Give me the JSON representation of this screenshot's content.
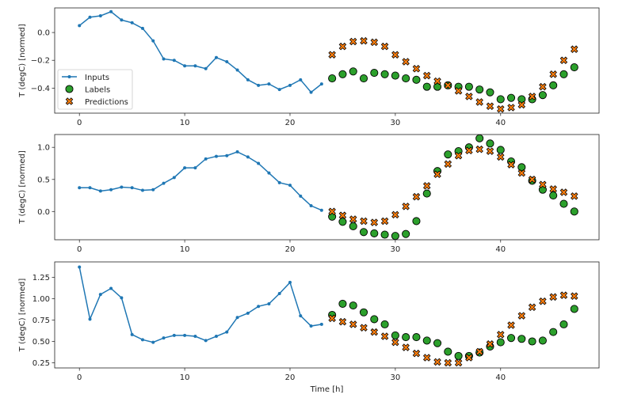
{
  "chart_data": [
    {
      "type": "line",
      "ylabel": "T (degC) [normed]",
      "xlabel": "",
      "xlim": [
        -2.35,
        49.35
      ],
      "ylim": [
        -0.58,
        0.177
      ],
      "xticks": [
        0,
        10,
        20,
        30,
        40
      ],
      "yticks": [
        0.0,
        -0.2,
        -0.4
      ],
      "ytick_labels": [
        "0.0",
        "−0.2",
        "−0.4"
      ],
      "legend": {
        "placement": "lower-left",
        "entries": [
          "Inputs",
          "Labels",
          "Predictions"
        ]
      },
      "grid": false,
      "inputs": {
        "name": "Inputs",
        "x_start": 0,
        "values": [
          0.05,
          0.11,
          0.12,
          0.15,
          0.09,
          0.07,
          0.03,
          -0.06,
          -0.19,
          -0.2,
          -0.24,
          -0.24,
          -0.26,
          -0.18,
          -0.21,
          -0.27,
          -0.34,
          -0.38,
          -0.37,
          -0.41,
          -0.38,
          -0.34,
          -0.43,
          -0.37
        ]
      },
      "labels": {
        "name": "Labels",
        "x_start": 24,
        "values": [
          -0.33,
          -0.3,
          -0.28,
          -0.33,
          -0.29,
          -0.3,
          -0.31,
          -0.33,
          -0.34,
          -0.39,
          -0.39,
          -0.38,
          -0.39,
          -0.39,
          -0.41,
          -0.43,
          -0.48,
          -0.47,
          -0.48,
          -0.48,
          -0.45,
          -0.38,
          -0.3,
          -0.25
        ]
      },
      "predictions": {
        "name": "Predictions",
        "x_start": 24,
        "values": [
          -0.16,
          -0.1,
          -0.065,
          -0.06,
          -0.07,
          -0.1,
          -0.16,
          -0.21,
          -0.26,
          -0.31,
          -0.35,
          -0.38,
          -0.42,
          -0.46,
          -0.5,
          -0.53,
          -0.55,
          -0.54,
          -0.52,
          -0.46,
          -0.39,
          -0.3,
          -0.2,
          -0.12
        ]
      }
    },
    {
      "type": "line",
      "ylabel": "T (degC) [normed]",
      "xlabel": "",
      "xlim": [
        -2.35,
        49.35
      ],
      "ylim": [
        -0.44,
        1.2
      ],
      "xticks": [
        0,
        10,
        20,
        30,
        40
      ],
      "yticks": [
        0.0,
        0.5,
        1.0
      ],
      "ytick_labels": [
        "0.0",
        "0.5",
        "1.0"
      ],
      "grid": false,
      "inputs": {
        "name": "Inputs",
        "x_start": 0,
        "values": [
          0.37,
          0.37,
          0.32,
          0.34,
          0.38,
          0.37,
          0.33,
          0.34,
          0.44,
          0.53,
          0.68,
          0.68,
          0.82,
          0.86,
          0.87,
          0.93,
          0.85,
          0.75,
          0.6,
          0.45,
          0.41,
          0.24,
          0.09,
          0.02
        ]
      },
      "labels": {
        "name": "Labels",
        "x_start": 24,
        "values": [
          -0.08,
          -0.16,
          -0.23,
          -0.32,
          -0.34,
          -0.36,
          -0.38,
          -0.35,
          -0.15,
          0.28,
          0.63,
          0.89,
          0.94,
          1.0,
          1.14,
          1.06,
          0.96,
          0.78,
          0.69,
          0.48,
          0.34,
          0.25,
          0.12,
          0.0
        ]
      },
      "predictions": {
        "name": "Predictions",
        "x_start": 24,
        "values": [
          0.0,
          -0.06,
          -0.12,
          -0.15,
          -0.17,
          -0.15,
          -0.05,
          0.08,
          0.23,
          0.4,
          0.58,
          0.74,
          0.87,
          0.95,
          0.97,
          0.94,
          0.85,
          0.73,
          0.6,
          0.5,
          0.42,
          0.35,
          0.3,
          0.24
        ]
      }
    },
    {
      "type": "line",
      "ylabel": "T (degC) [normed]",
      "xlabel": "Time [h]",
      "xlim": [
        -2.35,
        49.35
      ],
      "ylim": [
        0.19,
        1.43
      ],
      "xticks": [
        0,
        10,
        20,
        30,
        40
      ],
      "yticks": [
        0.25,
        0.5,
        0.75,
        1.0,
        1.25
      ],
      "ytick_labels": [
        "0.25",
        "0.50",
        "0.75",
        "1.00",
        "1.25"
      ],
      "grid": false,
      "inputs": {
        "name": "Inputs",
        "x_start": 0,
        "values": [
          1.37,
          0.76,
          1.05,
          1.12,
          1.01,
          0.58,
          0.52,
          0.49,
          0.54,
          0.57,
          0.57,
          0.56,
          0.51,
          0.56,
          0.61,
          0.78,
          0.83,
          0.91,
          0.94,
          1.06,
          1.19,
          0.8,
          0.68,
          0.7
        ]
      },
      "labels": {
        "name": "Labels",
        "x_start": 24,
        "values": [
          0.81,
          0.94,
          0.92,
          0.84,
          0.76,
          0.7,
          0.57,
          0.55,
          0.55,
          0.51,
          0.48,
          0.38,
          0.33,
          0.33,
          0.37,
          0.44,
          0.49,
          0.54,
          0.53,
          0.5,
          0.51,
          0.61,
          0.7,
          0.88
        ]
      },
      "predictions": {
        "name": "Predictions",
        "x_start": 24,
        "values": [
          0.77,
          0.73,
          0.7,
          0.66,
          0.61,
          0.56,
          0.49,
          0.43,
          0.36,
          0.31,
          0.26,
          0.25,
          0.25,
          0.31,
          0.38,
          0.47,
          0.58,
          0.69,
          0.8,
          0.9,
          0.97,
          1.02,
          1.04,
          1.03
        ]
      }
    }
  ],
  "colors": {
    "inputs": "#1f77b4",
    "labels": "#2ca02c",
    "predictions": "#ff7f0e",
    "edge": "#000000"
  }
}
